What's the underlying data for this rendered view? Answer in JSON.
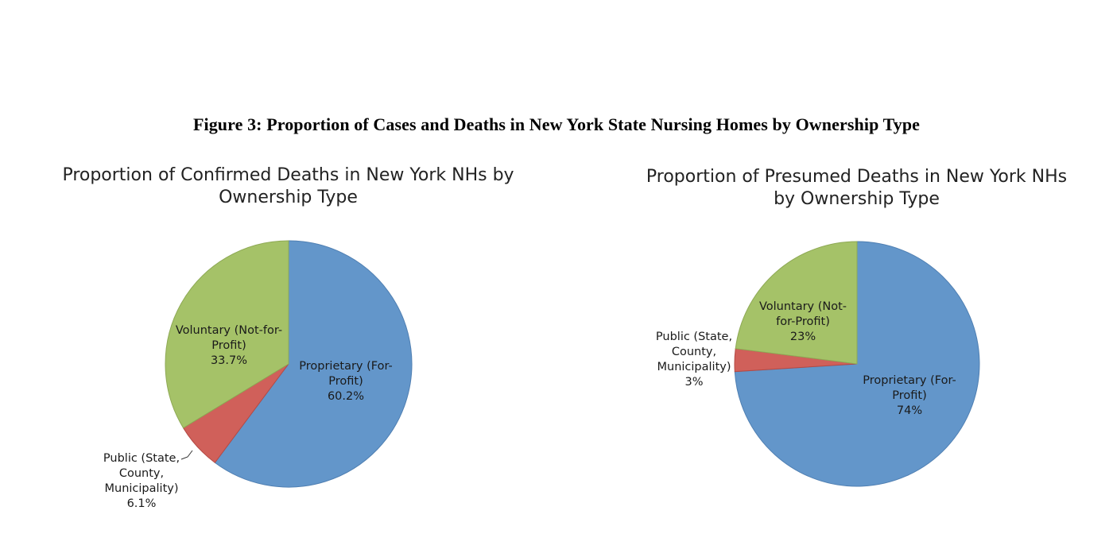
{
  "figure_title": "Figure 3: Proportion of Cases and Deaths in New York State Nursing Homes by Ownership Type",
  "chart_data": [
    {
      "type": "pie",
      "title_lines": [
        "Proportion of Confirmed Deaths in New York NHs by",
        "Ownership Type"
      ],
      "slices": [
        {
          "name_lines": [
            "Proprietary (For-",
            "Profit)"
          ],
          "value": 60.2,
          "value_label": "60.2%",
          "color": "#6396CA"
        },
        {
          "name_lines": [
            "Public (State,",
            "County,",
            "Municipality)"
          ],
          "value": 6.1,
          "value_label": "6.1%",
          "color": "#D0605A"
        },
        {
          "name_lines": [
            "Voluntary (Not-for-",
            "Profit)"
          ],
          "value": 33.7,
          "value_label": "33.7%",
          "color": "#A5C268"
        }
      ]
    },
    {
      "type": "pie",
      "title_lines": [
        "Proportion of Presumed Deaths in New York NHs",
        "by Ownership Type"
      ],
      "slices": [
        {
          "name_lines": [
            "Proprietary (For-",
            "Profit)"
          ],
          "value": 74,
          "value_label": "74%",
          "color": "#6396CA"
        },
        {
          "name_lines": [
            "Public (State,",
            "County,",
            "Municipality)"
          ],
          "value": 3,
          "value_label": "3%",
          "color": "#D0605A"
        },
        {
          "name_lines": [
            "Voluntary (Not-",
            "for-Profit)"
          ],
          "value": 23,
          "value_label": "23%",
          "color": "#A5C268"
        }
      ]
    }
  ]
}
